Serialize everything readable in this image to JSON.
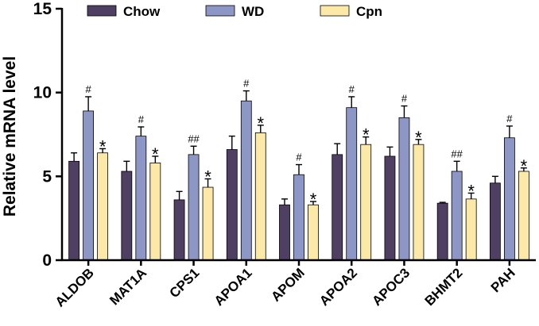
{
  "chart_data": {
    "type": "bar",
    "ylabel": "Relative mRNA level",
    "xlabel": "",
    "ylim": [
      0,
      15
    ],
    "yticks": [
      0,
      5,
      10,
      15
    ],
    "categories": [
      "ALDOB",
      "MAT1A",
      "CPS1",
      "APOA1",
      "APOM",
      "APOA2",
      "APOC3",
      "BHMT2",
      "PAH"
    ],
    "series": [
      {
        "name": "Chow",
        "color": "#4f3f62",
        "values": [
          5.9,
          5.3,
          3.6,
          6.6,
          3.3,
          6.3,
          6.2,
          3.4,
          4.6
        ],
        "errors": [
          0.5,
          0.6,
          0.5,
          0.8,
          0.35,
          0.65,
          0.55,
          0.05,
          0.4
        ],
        "marks": [
          "",
          "",
          "",
          "",
          "",
          "",
          "",
          "",
          ""
        ]
      },
      {
        "name": "WD",
        "color": "#8d97c6",
        "values": [
          8.9,
          7.4,
          6.3,
          9.5,
          5.1,
          9.1,
          8.5,
          5.3,
          7.3
        ],
        "errors": [
          0.85,
          0.55,
          0.5,
          0.6,
          0.6,
          0.65,
          0.7,
          0.6,
          0.7
        ],
        "marks": [
          "#",
          "#",
          "##",
          "#",
          "#",
          "#",
          "#",
          "##",
          "#"
        ]
      },
      {
        "name": "Cpn",
        "color": "#fce9a8",
        "values": [
          6.4,
          5.8,
          4.35,
          7.6,
          3.3,
          6.9,
          6.9,
          3.65,
          5.3
        ],
        "errors": [
          0.25,
          0.4,
          0.5,
          0.45,
          0.2,
          0.45,
          0.3,
          0.35,
          0.2
        ],
        "marks": [
          "*",
          "*",
          "*",
          "*",
          "*",
          "*",
          "*",
          "*",
          "*"
        ]
      }
    ],
    "legend": {
      "position": "top",
      "entries": [
        "Chow",
        "WD",
        "Cpn"
      ]
    }
  }
}
